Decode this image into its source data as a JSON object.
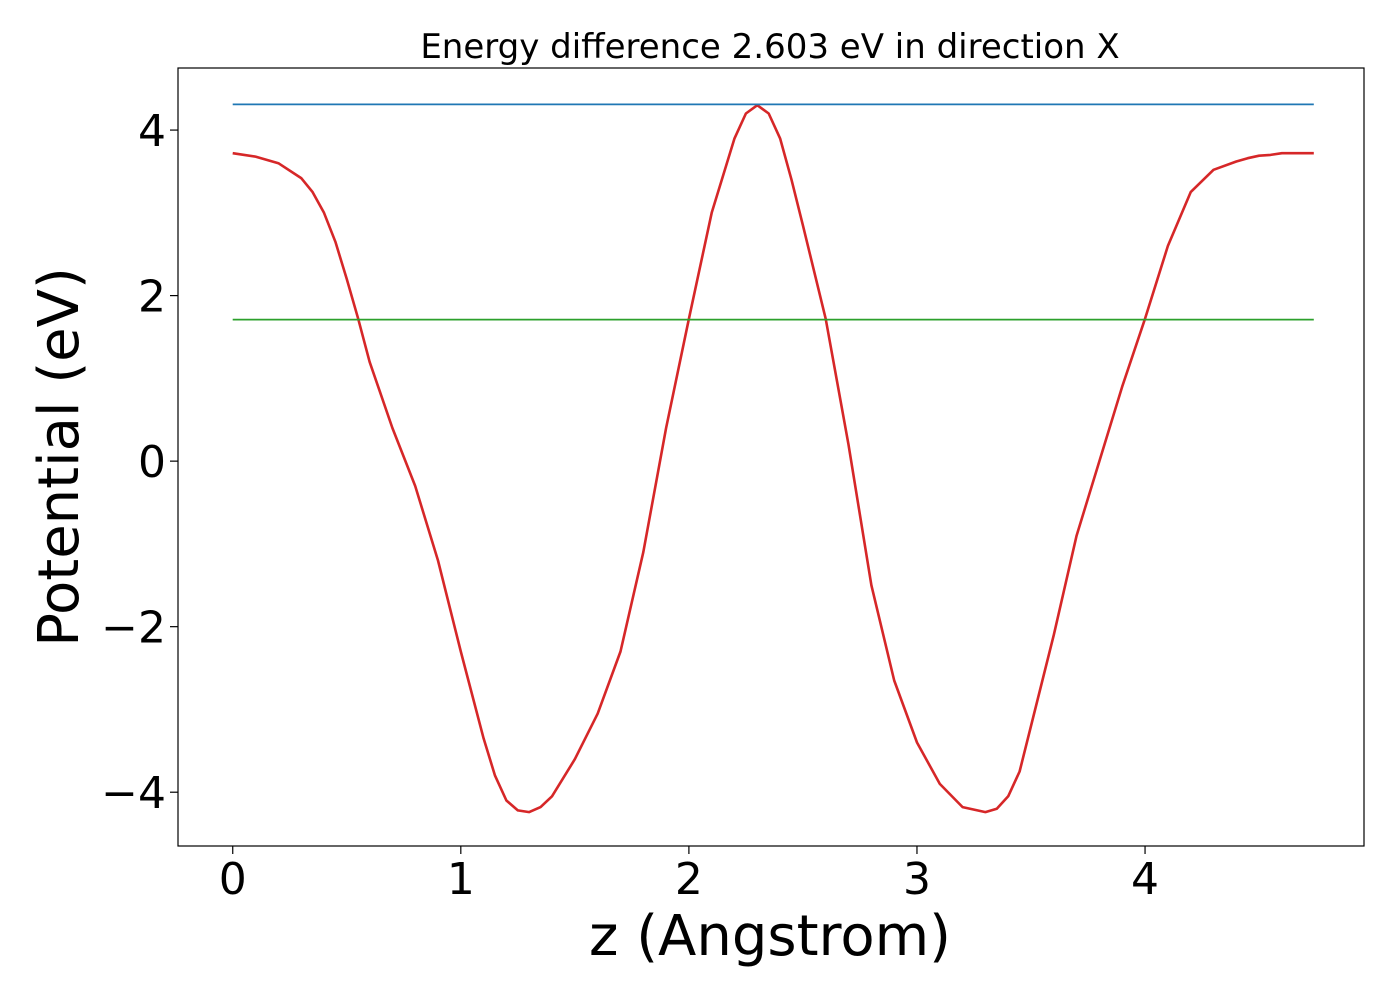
{
  "chart_data": {
    "type": "line",
    "title": "Energy difference 2.603 eV in direction X",
    "xlabel": "z (Angstrom)",
    "ylabel": "Potential (eV)",
    "xlim": [
      -0.24,
      4.96
    ],
    "ylim": [
      -4.65,
      4.75
    ],
    "xticks": [
      0,
      1,
      2,
      3,
      4
    ],
    "xtick_labels": [
      "0",
      "1",
      "2",
      "3",
      "4"
    ],
    "yticks": [
      -4,
      -2,
      0,
      2,
      4
    ],
    "ytick_labels": [
      "−4",
      "−2",
      "0",
      "2",
      "4"
    ],
    "grid": false,
    "legend": "none",
    "series": [
      {
        "color": "#d62728",
        "x": [
          0.0,
          0.1,
          0.2,
          0.3,
          0.35,
          0.4,
          0.45,
          0.5,
          0.55,
          0.6,
          0.7,
          0.8,
          0.9,
          1.0,
          1.1,
          1.15,
          1.2,
          1.25,
          1.3,
          1.35,
          1.4,
          1.5,
          1.6,
          1.7,
          1.8,
          1.9,
          2.0,
          2.1,
          2.2,
          2.25,
          2.3,
          2.35,
          2.4,
          2.45,
          2.5,
          2.6,
          2.7,
          2.8,
          2.9,
          3.0,
          3.1,
          3.2,
          3.3,
          3.35,
          3.4,
          3.45,
          3.5,
          3.6,
          3.7,
          3.8,
          3.9,
          4.0,
          4.1,
          4.2,
          4.3,
          4.4,
          4.45,
          4.5,
          4.55,
          4.6,
          4.7,
          4.74
        ],
        "y": [
          3.72,
          3.68,
          3.6,
          3.42,
          3.25,
          3.0,
          2.65,
          2.2,
          1.72,
          1.2,
          0.4,
          -0.3,
          -1.2,
          -2.3,
          -3.35,
          -3.8,
          -4.1,
          -4.22,
          -4.24,
          -4.18,
          -4.05,
          -3.6,
          -3.05,
          -2.3,
          -1.1,
          0.4,
          1.72,
          3.0,
          3.9,
          4.2,
          4.3,
          4.2,
          3.9,
          3.4,
          2.85,
          1.72,
          0.2,
          -1.5,
          -2.65,
          -3.4,
          -3.9,
          -4.18,
          -4.24,
          -4.2,
          -4.05,
          -3.75,
          -3.2,
          -2.1,
          -0.9,
          0.0,
          0.9,
          1.72,
          2.6,
          3.25,
          3.52,
          3.62,
          3.66,
          3.69,
          3.7,
          3.72,
          3.72,
          3.72
        ]
      },
      {
        "color": "#1f77b4",
        "x": [
          0.0,
          4.74
        ],
        "y": [
          4.31,
          4.31
        ]
      },
      {
        "color": "#2ca02c",
        "x": [
          0.0,
          4.74
        ],
        "y": [
          1.71,
          1.71
        ]
      }
    ]
  }
}
